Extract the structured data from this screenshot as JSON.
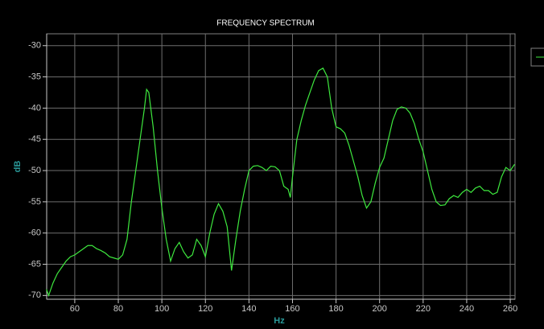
{
  "chart_data": {
    "type": "line",
    "title": "FREQUENCY SPECTRUM",
    "x_label": "Hz",
    "y_label": "dB",
    "x": [
      47,
      48,
      50,
      52,
      54,
      56,
      58,
      60,
      62,
      64,
      66,
      68,
      70,
      72,
      74,
      76,
      78,
      80,
      82,
      84,
      86,
      88,
      90,
      92,
      93,
      94,
      96,
      98,
      100,
      102,
      104,
      106,
      108,
      110,
      112,
      114,
      116,
      118,
      120,
      122,
      124,
      126,
      128,
      130,
      132,
      134,
      136,
      138,
      140,
      142,
      144,
      146,
      148,
      150,
      152,
      154,
      156,
      158,
      159,
      160,
      162,
      164,
      166,
      168,
      170,
      172,
      174,
      176,
      178,
      180,
      182,
      184,
      186,
      188,
      190,
      192,
      194,
      196,
      198,
      200,
      202,
      204,
      206,
      208,
      210,
      212,
      214,
      216,
      218,
      220,
      222,
      224,
      226,
      228,
      230,
      232,
      234,
      236,
      238,
      240,
      242,
      244,
      246,
      248,
      250,
      252,
      254,
      256,
      258,
      260,
      262
    ],
    "values": [
      -69,
      -70,
      -68,
      -66.5,
      -65.5,
      -64.5,
      -63.8,
      -63.5,
      -63,
      -62.5,
      -62,
      -62,
      -62.5,
      -62.8,
      -63.2,
      -63.8,
      -64,
      -64.2,
      -63.5,
      -61,
      -55,
      -50,
      -45,
      -40,
      -37,
      -37.5,
      -43,
      -50,
      -56,
      -61,
      -64.5,
      -62.5,
      -61.5,
      -63,
      -64,
      -63.5,
      -61,
      -62,
      -63.8,
      -60,
      -57,
      -55.3,
      -56.5,
      -59,
      -66,
      -61,
      -56.5,
      -53,
      -50,
      -49.3,
      -49.2,
      -49.5,
      -50,
      -49.3,
      -49.4,
      -50,
      -52.5,
      -53,
      -54.3,
      -51,
      -45,
      -42,
      -39.5,
      -37.5,
      -35.5,
      -34,
      -33.6,
      -35,
      -40,
      -43,
      -43.3,
      -44,
      -46,
      -48.5,
      -51,
      -54,
      -56,
      -55,
      -52,
      -49.5,
      -48,
      -45,
      -42,
      -40.2,
      -39.8,
      -40,
      -40.8,
      -42.5,
      -45,
      -47,
      -50,
      -53,
      -55,
      -55.6,
      -55.5,
      -54.5,
      -54,
      -54.3,
      -53.5,
      -53,
      -53.5,
      -52.8,
      -52.5,
      -53.2,
      -53.2,
      -53.8,
      -53.5,
      -51,
      -49.5,
      -50,
      -49
    ],
    "color": "#3ee83e",
    "xlim": [
      47.1,
      262.2
    ],
    "ylim": [
      -70.6,
      -28.1
    ],
    "xticks": [
      60,
      80,
      100,
      120,
      140,
      160,
      180,
      200,
      220,
      240,
      260
    ],
    "yticks": [
      -30,
      -35,
      -40,
      -45,
      -50,
      -55,
      -60,
      -65,
      -70
    ],
    "grid": true
  }
}
